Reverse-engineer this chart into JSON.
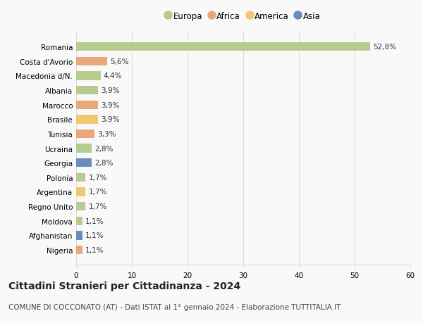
{
  "countries": [
    "Nigeria",
    "Afghanistan",
    "Moldova",
    "Regno Unito",
    "Argentina",
    "Polonia",
    "Georgia",
    "Ucraina",
    "Tunisia",
    "Brasile",
    "Marocco",
    "Albania",
    "Macedonia d/N.",
    "Costa d'Avorio",
    "Romania"
  ],
  "values": [
    1.1,
    1.1,
    1.1,
    1.7,
    1.7,
    1.7,
    2.8,
    2.8,
    3.3,
    3.9,
    3.9,
    3.9,
    4.4,
    5.6,
    52.8
  ],
  "labels": [
    "1,1%",
    "1,1%",
    "1,1%",
    "1,7%",
    "1,7%",
    "1,7%",
    "2,8%",
    "2,8%",
    "3,3%",
    "3,9%",
    "3,9%",
    "3,9%",
    "4,4%",
    "5,6%",
    "52,8%"
  ],
  "continents": [
    "Africa",
    "Asia",
    "Europa",
    "Europa",
    "America",
    "Europa",
    "Asia",
    "Europa",
    "Africa",
    "America",
    "Africa",
    "Europa",
    "Europa",
    "Africa",
    "Europa"
  ],
  "colors": {
    "Europa": "#b5cc8e",
    "Africa": "#e8a87c",
    "America": "#f0c96e",
    "Asia": "#6b8cba"
  },
  "legend_order": [
    "Europa",
    "Africa",
    "America",
    "Asia"
  ],
  "legend_colors": [
    "#b5cc8e",
    "#e8a87c",
    "#f0c96e",
    "#6b8cba"
  ],
  "xlim": [
    0,
    60
  ],
  "xticks": [
    0,
    10,
    20,
    30,
    40,
    50,
    60
  ],
  "title": "Cittadini Stranieri per Cittadinanza - 2024",
  "subtitle": "COMUNE DI COCCONATO (AT) - Dati ISTAT al 1° gennaio 2024 - Elaborazione TUTTITALIA.IT",
  "background_color": "#f9f9f9",
  "grid_color": "#dddddd",
  "bar_height": 0.6,
  "label_fontsize": 7.5,
  "tick_fontsize": 7.5,
  "title_fontsize": 10,
  "subtitle_fontsize": 7.5
}
